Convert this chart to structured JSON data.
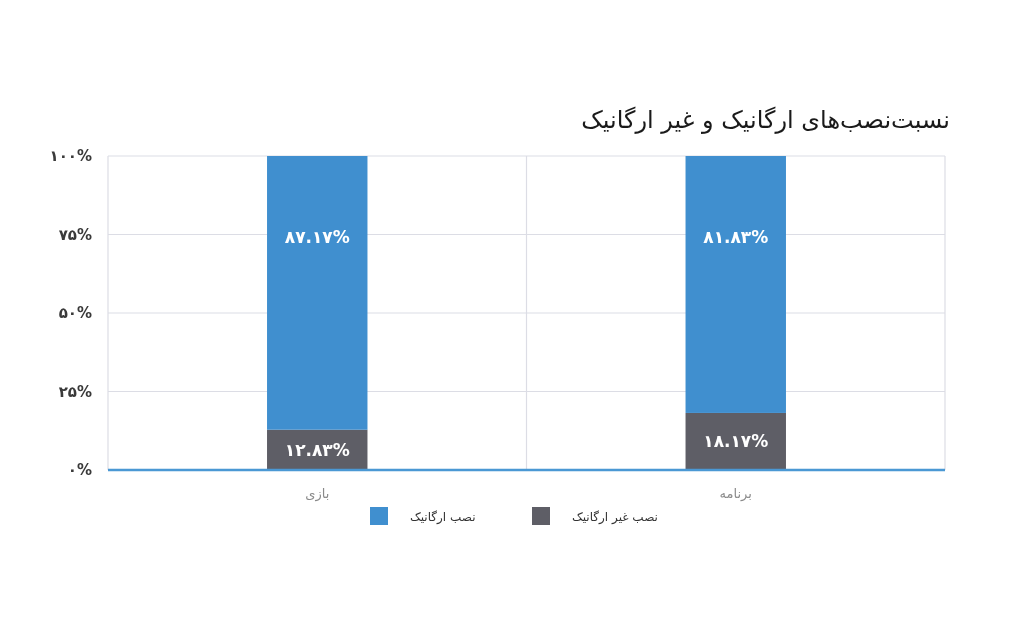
{
  "chart_data": {
    "type": "bar",
    "title": "نسبت‌نصب‌های ارگانیک و غیر ارگانیک",
    "categories": [
      "بازی",
      "برنامه"
    ],
    "stacked": true,
    "series": [
      {
        "name": "نصب غیر ارگانیک",
        "color": "#5e5e66",
        "values": [
          12.83,
          18.17
        ],
        "value_labels": [
          "۱۲.۸۳%",
          "۱۸.۱۷%"
        ]
      },
      {
        "name": "نصب ارگانیک",
        "color": "#408fcf",
        "values": [
          87.17,
          81.83
        ],
        "value_labels": [
          "۸۷.۱۷%",
          "۸۱.۸۳%"
        ]
      }
    ],
    "ylim": [
      0,
      100
    ],
    "yticks": [
      {
        "value": 0,
        "label": "۰%"
      },
      {
        "value": 25,
        "label": "۲۵%"
      },
      {
        "value": 50,
        "label": "۵۰%"
      },
      {
        "value": 75,
        "label": "۷۵%"
      },
      {
        "value": 100,
        "label": "۱۰۰%"
      }
    ],
    "grid": true,
    "legend": "bottom"
  }
}
